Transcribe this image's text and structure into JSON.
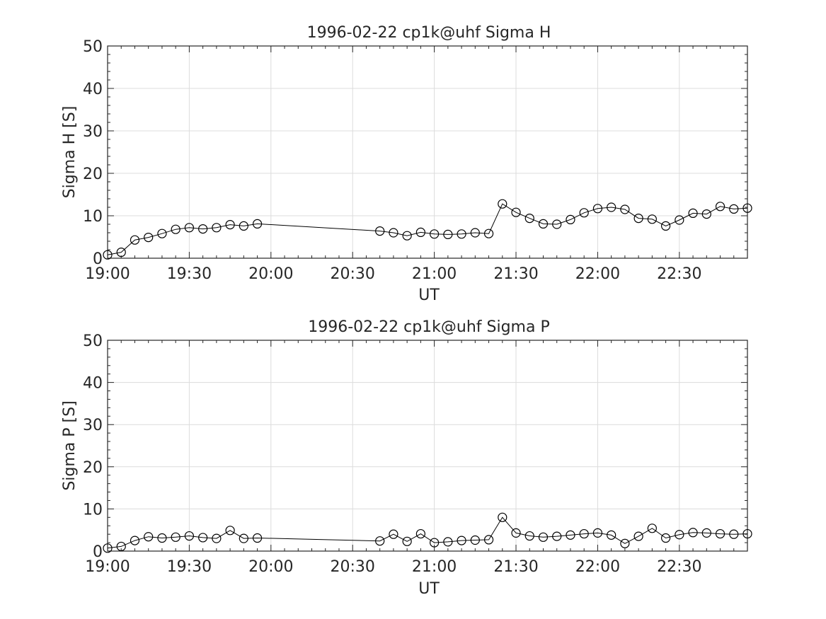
{
  "chart_data": [
    {
      "type": "line",
      "title": "1996-02-22  cp1k@uhf Sigma H",
      "xlabel": "UT",
      "ylabel": "Sigma H [S]",
      "xlim": [
        "19:00",
        "22:55"
      ],
      "ylim": [
        0,
        50
      ],
      "xticks": [
        "19:00",
        "19:30",
        "20:00",
        "20:30",
        "21:00",
        "21:30",
        "22:00",
        "22:30"
      ],
      "yticks": [
        0,
        10,
        20,
        30,
        40,
        50
      ],
      "grid": true,
      "marker": "circle",
      "x": [
        "19:00",
        "19:05",
        "19:10",
        "19:15",
        "19:20",
        "19:25",
        "19:30",
        "19:35",
        "19:40",
        "19:45",
        "19:50",
        "19:55",
        "20:40",
        "20:45",
        "20:50",
        "20:55",
        "21:00",
        "21:05",
        "21:10",
        "21:15",
        "21:20",
        "21:25",
        "21:30",
        "21:35",
        "21:40",
        "21:45",
        "21:50",
        "21:55",
        "22:00",
        "22:05",
        "22:10",
        "22:15",
        "22:20",
        "22:25",
        "22:30",
        "22:35",
        "22:40",
        "22:45",
        "22:50",
        "22:55"
      ],
      "values": [
        0.8,
        1.4,
        4.3,
        4.9,
        5.8,
        6.8,
        7.2,
        6.9,
        7.2,
        7.9,
        7.6,
        8.1,
        6.4,
        6.0,
        5.3,
        6.1,
        5.7,
        5.6,
        5.7,
        6.0,
        5.8,
        12.8,
        10.8,
        9.4,
        8.1,
        8.0,
        9.1,
        10.7,
        11.7,
        12.0,
        11.5,
        9.4,
        9.2,
        7.6,
        9.0,
        10.6,
        10.4,
        12.2,
        11.6,
        11.8
      ]
    },
    {
      "type": "line",
      "title": "1996-02-22  cp1k@uhf Sigma P",
      "xlabel": "UT",
      "ylabel": "Sigma P [S]",
      "xlim": [
        "19:00",
        "22:55"
      ],
      "ylim": [
        0,
        50
      ],
      "xticks": [
        "19:00",
        "19:30",
        "20:00",
        "20:30",
        "21:00",
        "21:30",
        "22:00",
        "22:30"
      ],
      "yticks": [
        0,
        10,
        20,
        30,
        40,
        50
      ],
      "grid": true,
      "marker": "circle",
      "x": [
        "19:00",
        "19:05",
        "19:10",
        "19:15",
        "19:20",
        "19:25",
        "19:30",
        "19:35",
        "19:40",
        "19:45",
        "19:50",
        "19:55",
        "20:40",
        "20:45",
        "20:50",
        "20:55",
        "21:00",
        "21:05",
        "21:10",
        "21:15",
        "21:20",
        "21:25",
        "21:30",
        "21:35",
        "21:40",
        "21:45",
        "21:50",
        "21:55",
        "22:00",
        "22:05",
        "22:10",
        "22:15",
        "22:20",
        "22:25",
        "22:30",
        "22:35",
        "22:40",
        "22:45",
        "22:50",
        "22:55"
      ],
      "values": [
        0.7,
        1.1,
        2.5,
        3.4,
        3.1,
        3.3,
        3.6,
        3.2,
        3.0,
        4.9,
        3.0,
        3.1,
        2.4,
        4.0,
        2.3,
        4.1,
        2.0,
        2.2,
        2.5,
        2.6,
        2.7,
        8.0,
        4.3,
        3.6,
        3.3,
        3.5,
        3.8,
        4.1,
        4.3,
        3.8,
        1.8,
        3.5,
        5.4,
        3.1,
        3.9,
        4.4,
        4.3,
        4.1,
        4.0,
        4.1
      ]
    }
  ]
}
